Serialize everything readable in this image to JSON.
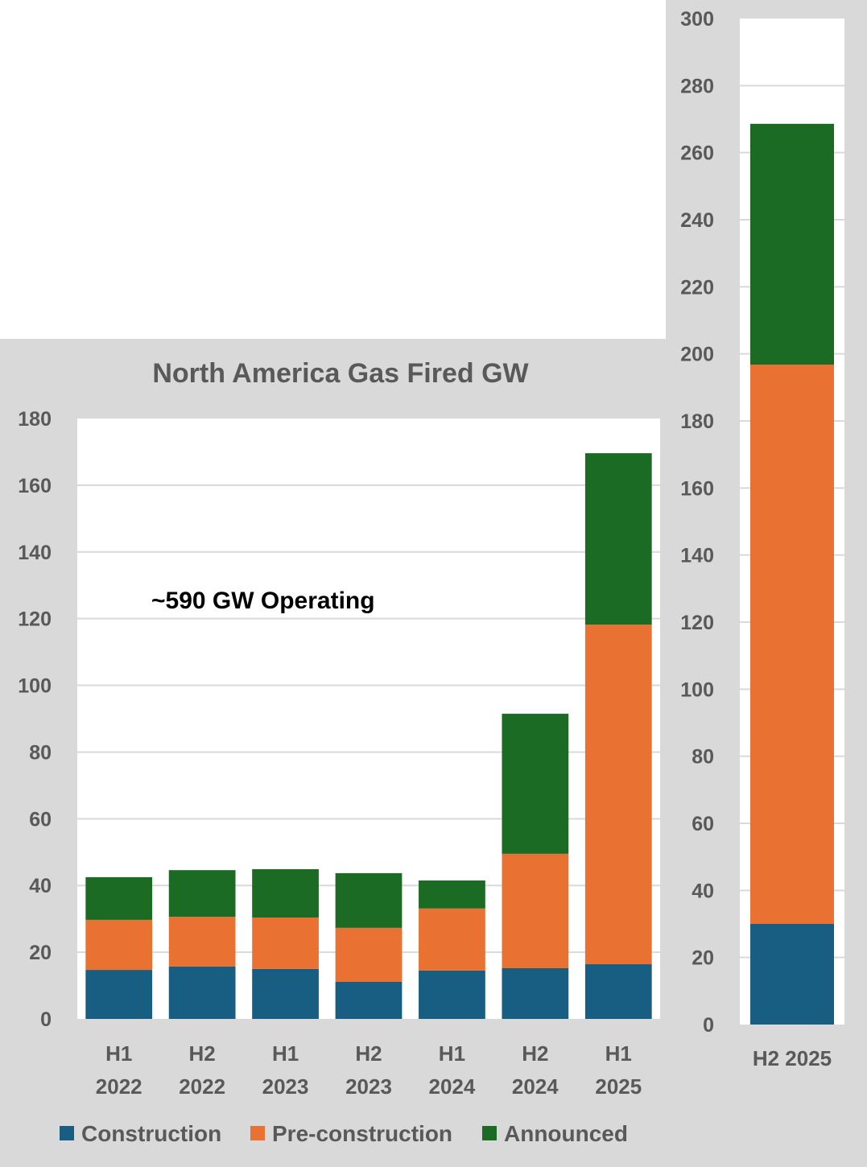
{
  "chart_data": [
    {
      "type": "bar",
      "stacked": true,
      "title": "North America Gas Fired GW",
      "xlabel": "",
      "ylabel": "",
      "ylim": [
        0,
        180
      ],
      "yticks": [
        0,
        20,
        40,
        60,
        80,
        100,
        120,
        140,
        160,
        180
      ],
      "grid": true,
      "categories": [
        [
          "H1",
          "2022"
        ],
        [
          "H2",
          "2022"
        ],
        [
          "H1",
          "2023"
        ],
        [
          "H2",
          "2023"
        ],
        [
          "H1",
          "2024"
        ],
        [
          "H2",
          "2024"
        ],
        [
          "H1",
          "2025"
        ]
      ],
      "series": [
        {
          "name": "Construction",
          "color": "#175e82",
          "values": [
            14.7,
            15.7,
            15.0,
            11.1,
            14.5,
            15.2,
            16.4
          ]
        },
        {
          "name": "Pre-construction",
          "color": "#e97132",
          "values": [
            15.0,
            14.9,
            15.4,
            16.2,
            18.6,
            34.3,
            101.8
          ]
        },
        {
          "name": "Announced",
          "color": "#1b6b25",
          "values": [
            12.8,
            14.0,
            14.5,
            16.4,
            8.4,
            42.0,
            51.4
          ]
        }
      ],
      "annotations": [
        "~590 GW Operating"
      ],
      "legend": {
        "position": "bottom",
        "entries": [
          "Construction",
          "Pre-construction",
          "Announced"
        ]
      }
    },
    {
      "type": "bar",
      "stacked": true,
      "title": "",
      "xlabel": "",
      "ylabel": "",
      "ylim": [
        0,
        300
      ],
      "yticks": [
        0,
        20,
        40,
        60,
        80,
        100,
        120,
        140,
        160,
        180,
        200,
        220,
        240,
        260,
        280,
        300
      ],
      "grid": true,
      "categories": [
        "H2 2025"
      ],
      "series": [
        {
          "name": "Construction",
          "color": "#175e82",
          "values": [
            30.0
          ]
        },
        {
          "name": "Pre-construction",
          "color": "#e97132",
          "values": [
            166.8
          ]
        },
        {
          "name": "Announced",
          "color": "#1b6b25",
          "values": [
            71.8
          ]
        }
      ]
    }
  ]
}
